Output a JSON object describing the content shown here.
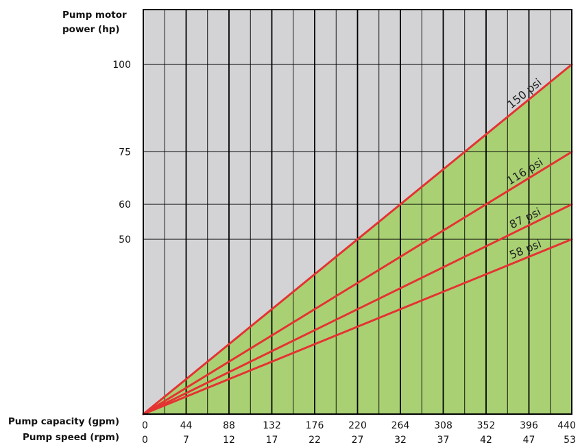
{
  "chart_data": {
    "type": "line",
    "title": "",
    "ylabel_lines": [
      "Pump motor",
      "power (hp)"
    ],
    "xlabel_primary": "Pump capacity (gpm)",
    "xlabel_secondary": "Pump speed (rpm)",
    "x_ticks": [
      "0",
      "44",
      "88",
      "132",
      "176",
      "220",
      "264",
      "308",
      "352",
      "396",
      "440"
    ],
    "x_ticks_secondary": [
      "0",
      "7",
      "12",
      "17",
      "22",
      "27",
      "32",
      "37",
      "42",
      "47",
      "53"
    ],
    "y_ticks": [
      {
        "label": "100",
        "value": 100
      },
      {
        "label": "75",
        "value": 75
      },
      {
        "label": "60",
        "value": 60
      },
      {
        "label": "50",
        "value": 50
      }
    ],
    "xlim": [
      0,
      440
    ],
    "ylim": [
      0,
      100
    ],
    "grid": true,
    "colors": {
      "background": "#d3d3d6",
      "fill": "#a9d173",
      "line": "#e53232",
      "grid": "#000000"
    },
    "series": [
      {
        "name": "150 psi",
        "x": [
          0,
          440
        ],
        "y": [
          0,
          100
        ]
      },
      {
        "name": "116 psi",
        "x": [
          0,
          440
        ],
        "y": [
          0,
          75
        ]
      },
      {
        "name": "87 psi",
        "x": [
          0,
          440
        ],
        "y": [
          0,
          60
        ]
      },
      {
        "name": "58 psi",
        "x": [
          0,
          440
        ],
        "y": [
          0,
          50
        ]
      }
    ]
  }
}
